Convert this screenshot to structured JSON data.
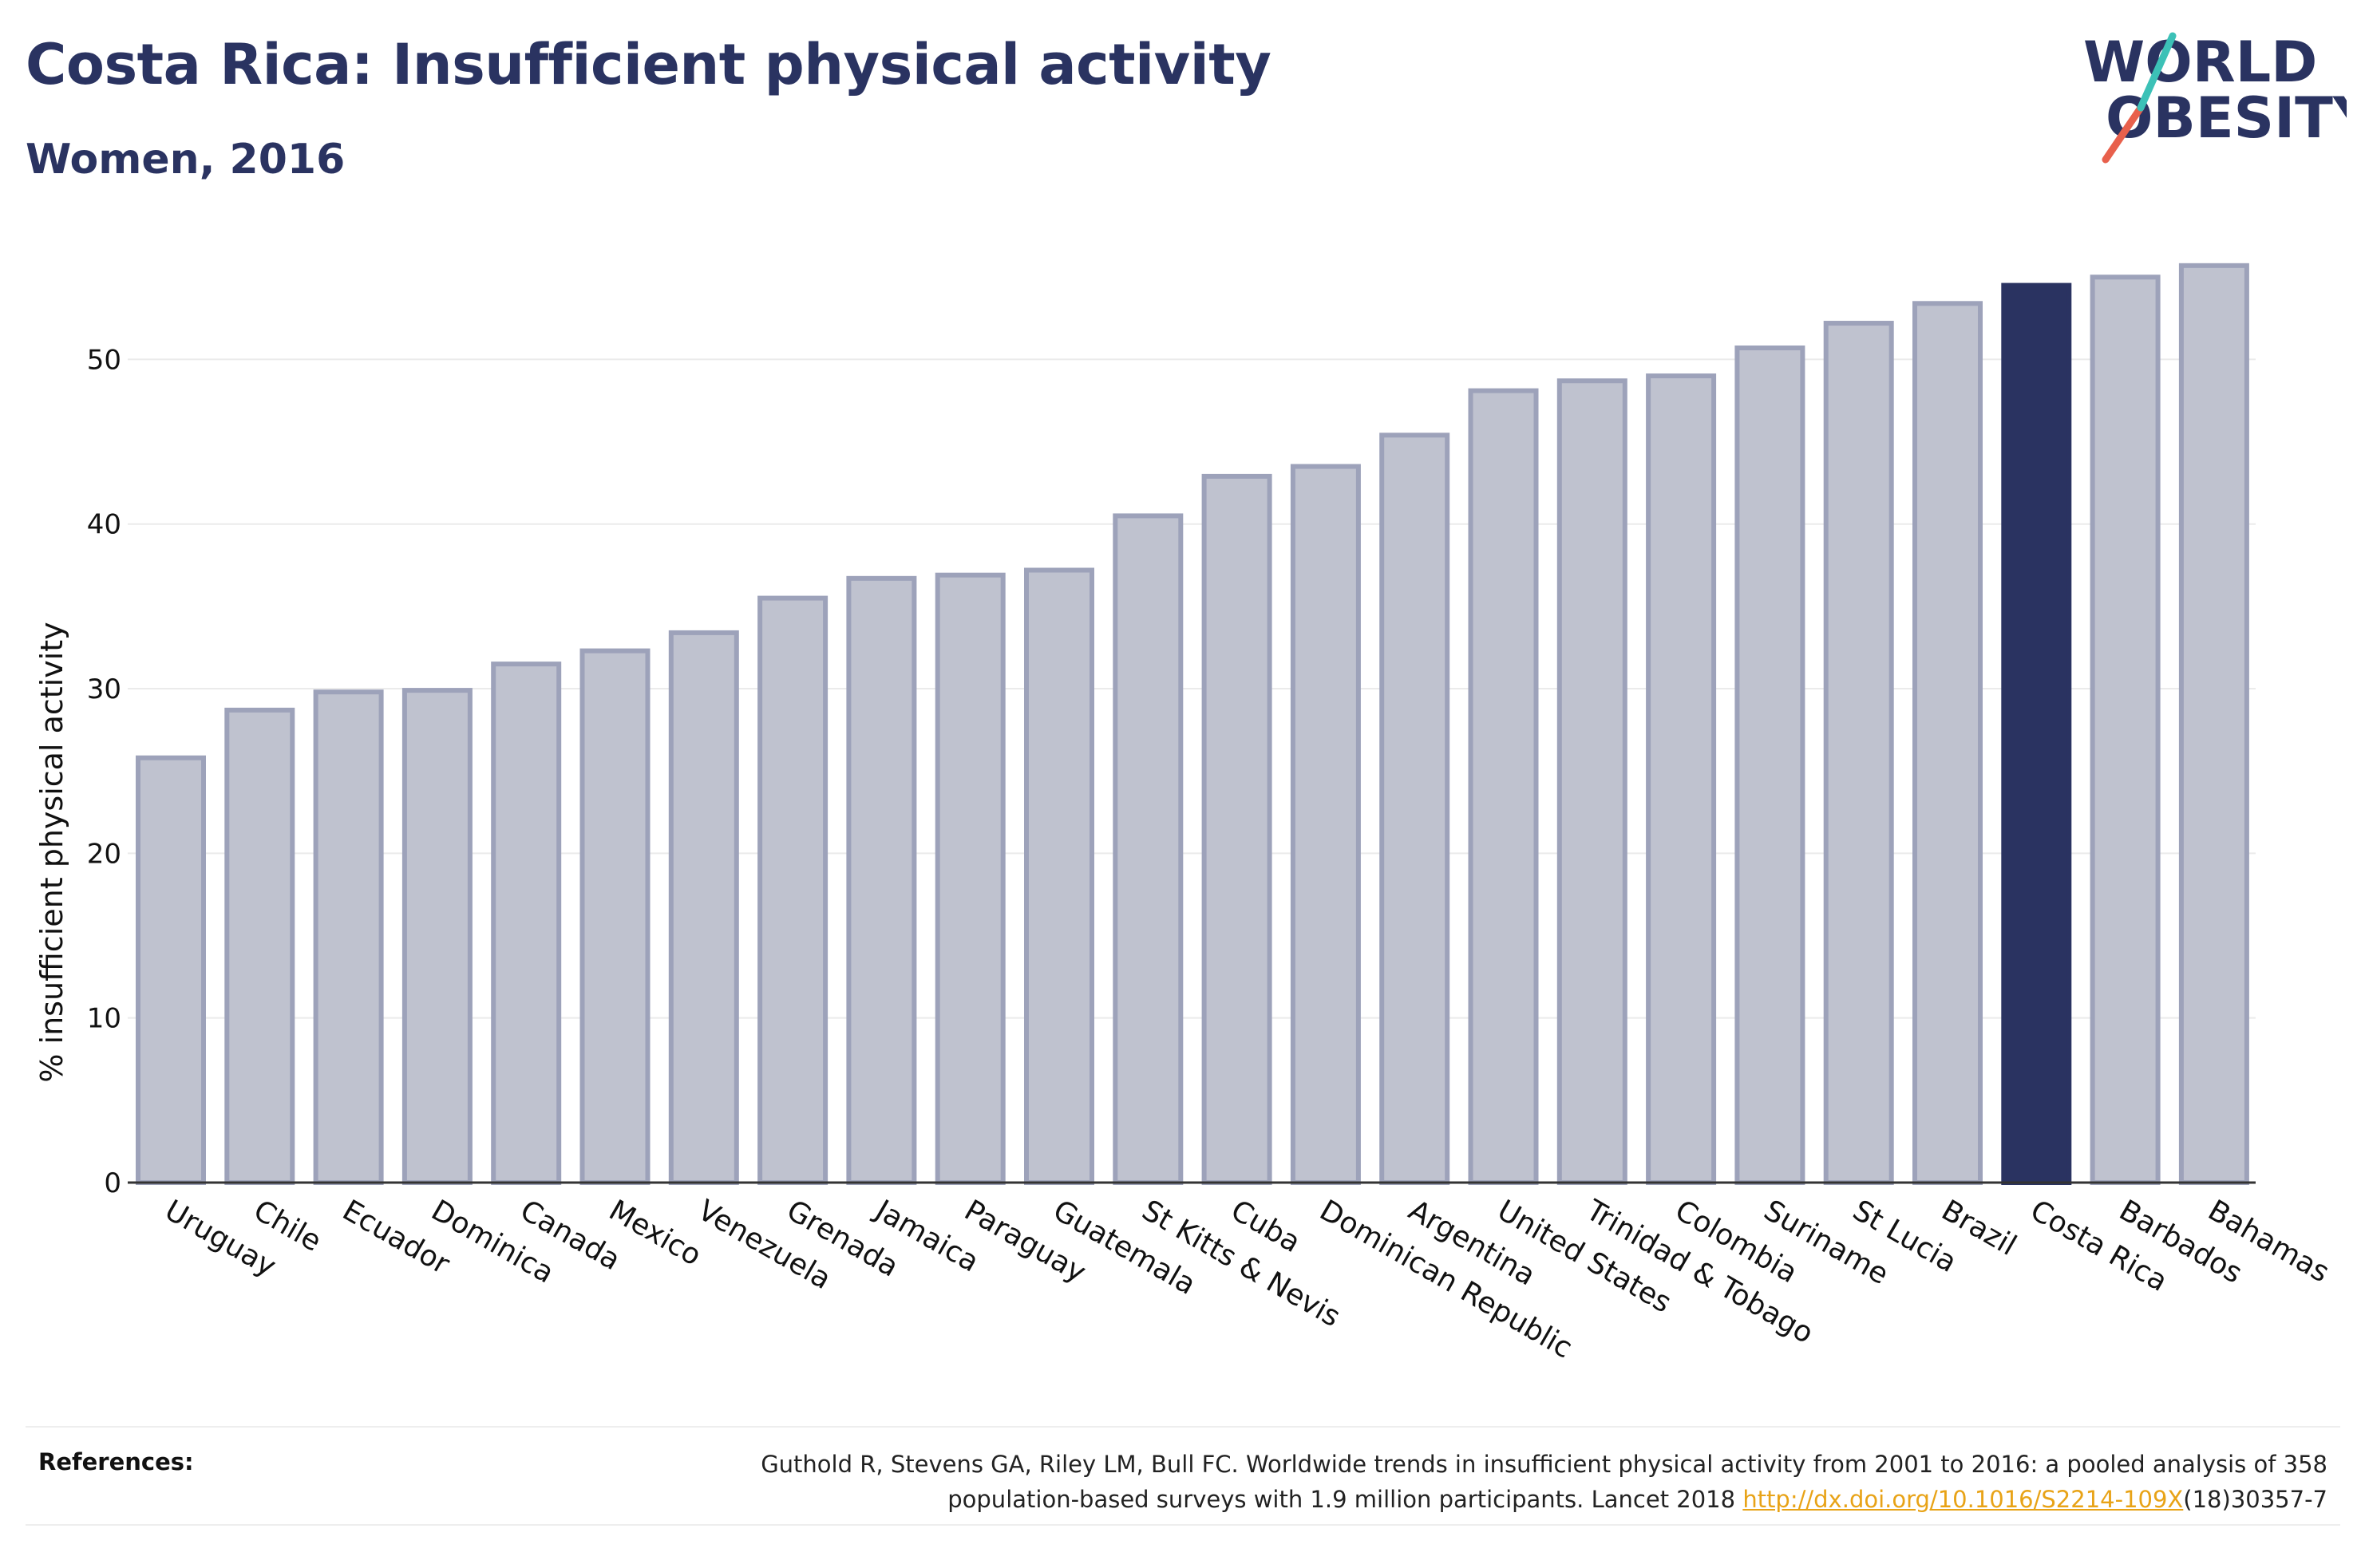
{
  "header": {
    "title": "Costa Rica: Insufficient physical activity",
    "subtitle": "Women, 2016"
  },
  "logo": {
    "line1": "WORLD",
    "line2": "OBESITY"
  },
  "chart_data": {
    "type": "bar",
    "ylabel": "% insufficient physical activity",
    "ylim": [
      0,
      57
    ],
    "yticks": [
      0,
      10,
      20,
      30,
      40,
      50
    ],
    "grid": true,
    "highlight": "Costa Rica",
    "categories": [
      "Uruguay",
      "Chile",
      "Ecuador",
      "Dominica",
      "Canada",
      "Mexico",
      "Venezuela",
      "Grenada",
      "Jamaica",
      "Paraguay",
      "Guatemala",
      "St Kitts & Nevis",
      "Cuba",
      "Dominican Republic",
      "Argentina",
      "United States",
      "Trinidad & Tobago",
      "Colombia",
      "Suriname",
      "St Lucia",
      "Brazil",
      "Costa Rica",
      "Barbados",
      "Bahamas"
    ],
    "values": [
      25.8,
      28.7,
      29.8,
      29.9,
      31.5,
      32.3,
      33.4,
      35.5,
      36.7,
      36.9,
      37.2,
      40.5,
      42.9,
      43.5,
      45.4,
      48.1,
      48.7,
      49.0,
      50.7,
      52.2,
      53.4,
      54.5,
      55.0,
      55.7
    ],
    "colors": {
      "bar_fill": "#bfc2cf",
      "bar_stroke": "#9da2ba",
      "highlight": "#2a3361",
      "grid": "#ebebeb",
      "axis": "#333333"
    }
  },
  "references": {
    "label": "References:",
    "text_line1": "Guthold R, Stevens GA, Riley LM, Bull FC. Worldwide trends in insufficient physical activity from 2001 to 2016: a pooled analysis of 358",
    "text_line2_before": "population-based surveys with 1.9 million participants. Lancet 2018 ",
    "link_text": "http://dx.doi.org/10.1016/S2214-109X",
    "text_line2_after": "(18)30357-7"
  }
}
